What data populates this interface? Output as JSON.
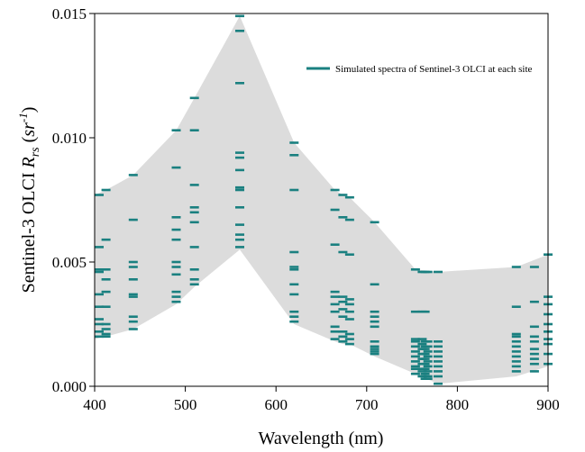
{
  "chart_data": {
    "type": "scatter",
    "xlabel": "Wavelength (nm)",
    "ylabel": {
      "prefix": "Sentinel-3 OLCI ",
      "symbol": "R",
      "subscript": "rs",
      "unit_open": " (",
      "unit": "sr",
      "superscript": "-1",
      "unit_close": ")"
    },
    "xlim": [
      400,
      900
    ],
    "ylim": [
      0.0,
      0.015
    ],
    "xticks": [
      "400",
      "500",
      "600",
      "700",
      "800",
      "900"
    ],
    "yticks": [
      "0.000",
      "0.005",
      "0.010",
      "0.015"
    ],
    "grid": false,
    "legend": {
      "position": "top-right",
      "entry": "Simulated spectra of Sentinel-3 OLCI at each site"
    },
    "colors": {
      "marker": "#1a8080",
      "envelope": "#dcdcdc"
    },
    "envelope": {
      "x": [
        400,
        412.5,
        442.5,
        490,
        510,
        560,
        620,
        665,
        673.75,
        681.25,
        708.75,
        753.75,
        778.75,
        865,
        900
      ],
      "upper": [
        0.0077,
        0.0079,
        0.0085,
        0.0103,
        0.0116,
        0.0149,
        0.0098,
        0.0079,
        0.0077,
        0.0076,
        0.0066,
        0.0047,
        0.0046,
        0.0048,
        0.0053
      ],
      "lower": [
        0.0019,
        0.002,
        0.0023,
        0.0033,
        0.004,
        0.0055,
        0.0025,
        0.0018,
        0.0017,
        0.0017,
        0.0012,
        0.0005,
        0.0001,
        0.0004,
        0.0008
      ]
    },
    "series": [
      {
        "x": 405.0,
        "values": [
          0.0077,
          0.0056,
          0.0047,
          0.0046,
          0.0037,
          0.0032,
          0.0027,
          0.0025,
          0.0022,
          0.002
        ]
      },
      {
        "x": 412.5,
        "values": [
          0.0079,
          0.0059,
          0.0047,
          0.0043,
          0.0038,
          0.0032,
          0.0025,
          0.0023,
          0.0021,
          0.002
        ]
      },
      {
        "x": 442.5,
        "values": [
          0.0085,
          0.0067,
          0.005,
          0.0048,
          0.0043,
          0.0037,
          0.0036,
          0.0028,
          0.0026,
          0.0023
        ]
      },
      {
        "x": 490.0,
        "values": [
          0.0103,
          0.0088,
          0.0068,
          0.0063,
          0.0059,
          0.005,
          0.0048,
          0.0045,
          0.0038,
          0.0036,
          0.0034
        ]
      },
      {
        "x": 510.0,
        "values": [
          0.0116,
          0.0103,
          0.0081,
          0.0072,
          0.007,
          0.0066,
          0.0056,
          0.0047,
          0.0043,
          0.0041
        ]
      },
      {
        "x": 560.0,
        "values": [
          0.0149,
          0.0143,
          0.0122,
          0.0094,
          0.0092,
          0.0087,
          0.008,
          0.0079,
          0.0072,
          0.0065,
          0.0061,
          0.0059,
          0.0056
        ]
      },
      {
        "x": 620.0,
        "values": [
          0.0098,
          0.0093,
          0.0079,
          0.0054,
          0.0048,
          0.0047,
          0.0041,
          0.0037,
          0.003,
          0.0028,
          0.0026
        ]
      },
      {
        "x": 665.0,
        "values": [
          0.0079,
          0.0071,
          0.0057,
          0.0038,
          0.0036,
          0.0033,
          0.003,
          0.0024,
          0.0022,
          0.0019
        ]
      },
      {
        "x": 673.75,
        "values": [
          0.0077,
          0.0068,
          0.0054,
          0.0036,
          0.0034,
          0.0031,
          0.0028,
          0.0022,
          0.002,
          0.0018
        ]
      },
      {
        "x": 681.25,
        "values": [
          0.0076,
          0.0067,
          0.0053,
          0.0035,
          0.0033,
          0.003,
          0.0027,
          0.0021,
          0.0019,
          0.0017
        ]
      },
      {
        "x": 708.75,
        "values": [
          0.0066,
          0.0041,
          0.003,
          0.0028,
          0.0026,
          0.0024,
          0.0018,
          0.0016,
          0.0015,
          0.0014,
          0.0013
        ]
      },
      {
        "x": 753.75,
        "values": [
          0.0047,
          0.003,
          0.0019,
          0.0018,
          0.0016,
          0.0014,
          0.0012,
          0.001,
          0.0008,
          0.0007,
          0.0005
        ]
      },
      {
        "x": 761.25,
        "values": [
          0.0046,
          0.003,
          0.0019,
          0.0017,
          0.0015,
          0.0013,
          0.0011,
          0.0009,
          0.0007,
          0.0006,
          0.0004
        ]
      },
      {
        "x": 764.375,
        "values": [
          0.0046,
          0.003,
          0.0018,
          0.0016,
          0.0015,
          0.0013,
          0.0011,
          0.0009,
          0.0007,
          0.0005,
          0.0003
        ]
      },
      {
        "x": 767.5,
        "values": [
          0.0046,
          0.0018,
          0.0016,
          0.0014,
          0.0012,
          0.001,
          0.0008,
          0.0006,
          0.0004,
          0.0003
        ]
      },
      {
        "x": 778.75,
        "values": [
          0.0046,
          0.0018,
          0.0016,
          0.0014,
          0.0012,
          0.001,
          0.0008,
          0.0006,
          0.0004,
          0.0001
        ]
      },
      {
        "x": 865.0,
        "values": [
          0.0048,
          0.0032,
          0.0021,
          0.002,
          0.0018,
          0.0016,
          0.0014,
          0.0012,
          0.001,
          0.0008,
          0.0006
        ]
      },
      {
        "x": 885.0,
        "values": [
          0.0048,
          0.0034,
          0.0024,
          0.002,
          0.0018,
          0.0015,
          0.0013,
          0.0011,
          0.0009,
          0.0006
        ]
      },
      {
        "x": 900.0,
        "values": [
          0.0053,
          0.0036,
          0.0033,
          0.0029,
          0.0025,
          0.0022,
          0.0019,
          0.0017,
          0.0013,
          0.0009
        ]
      }
    ]
  }
}
